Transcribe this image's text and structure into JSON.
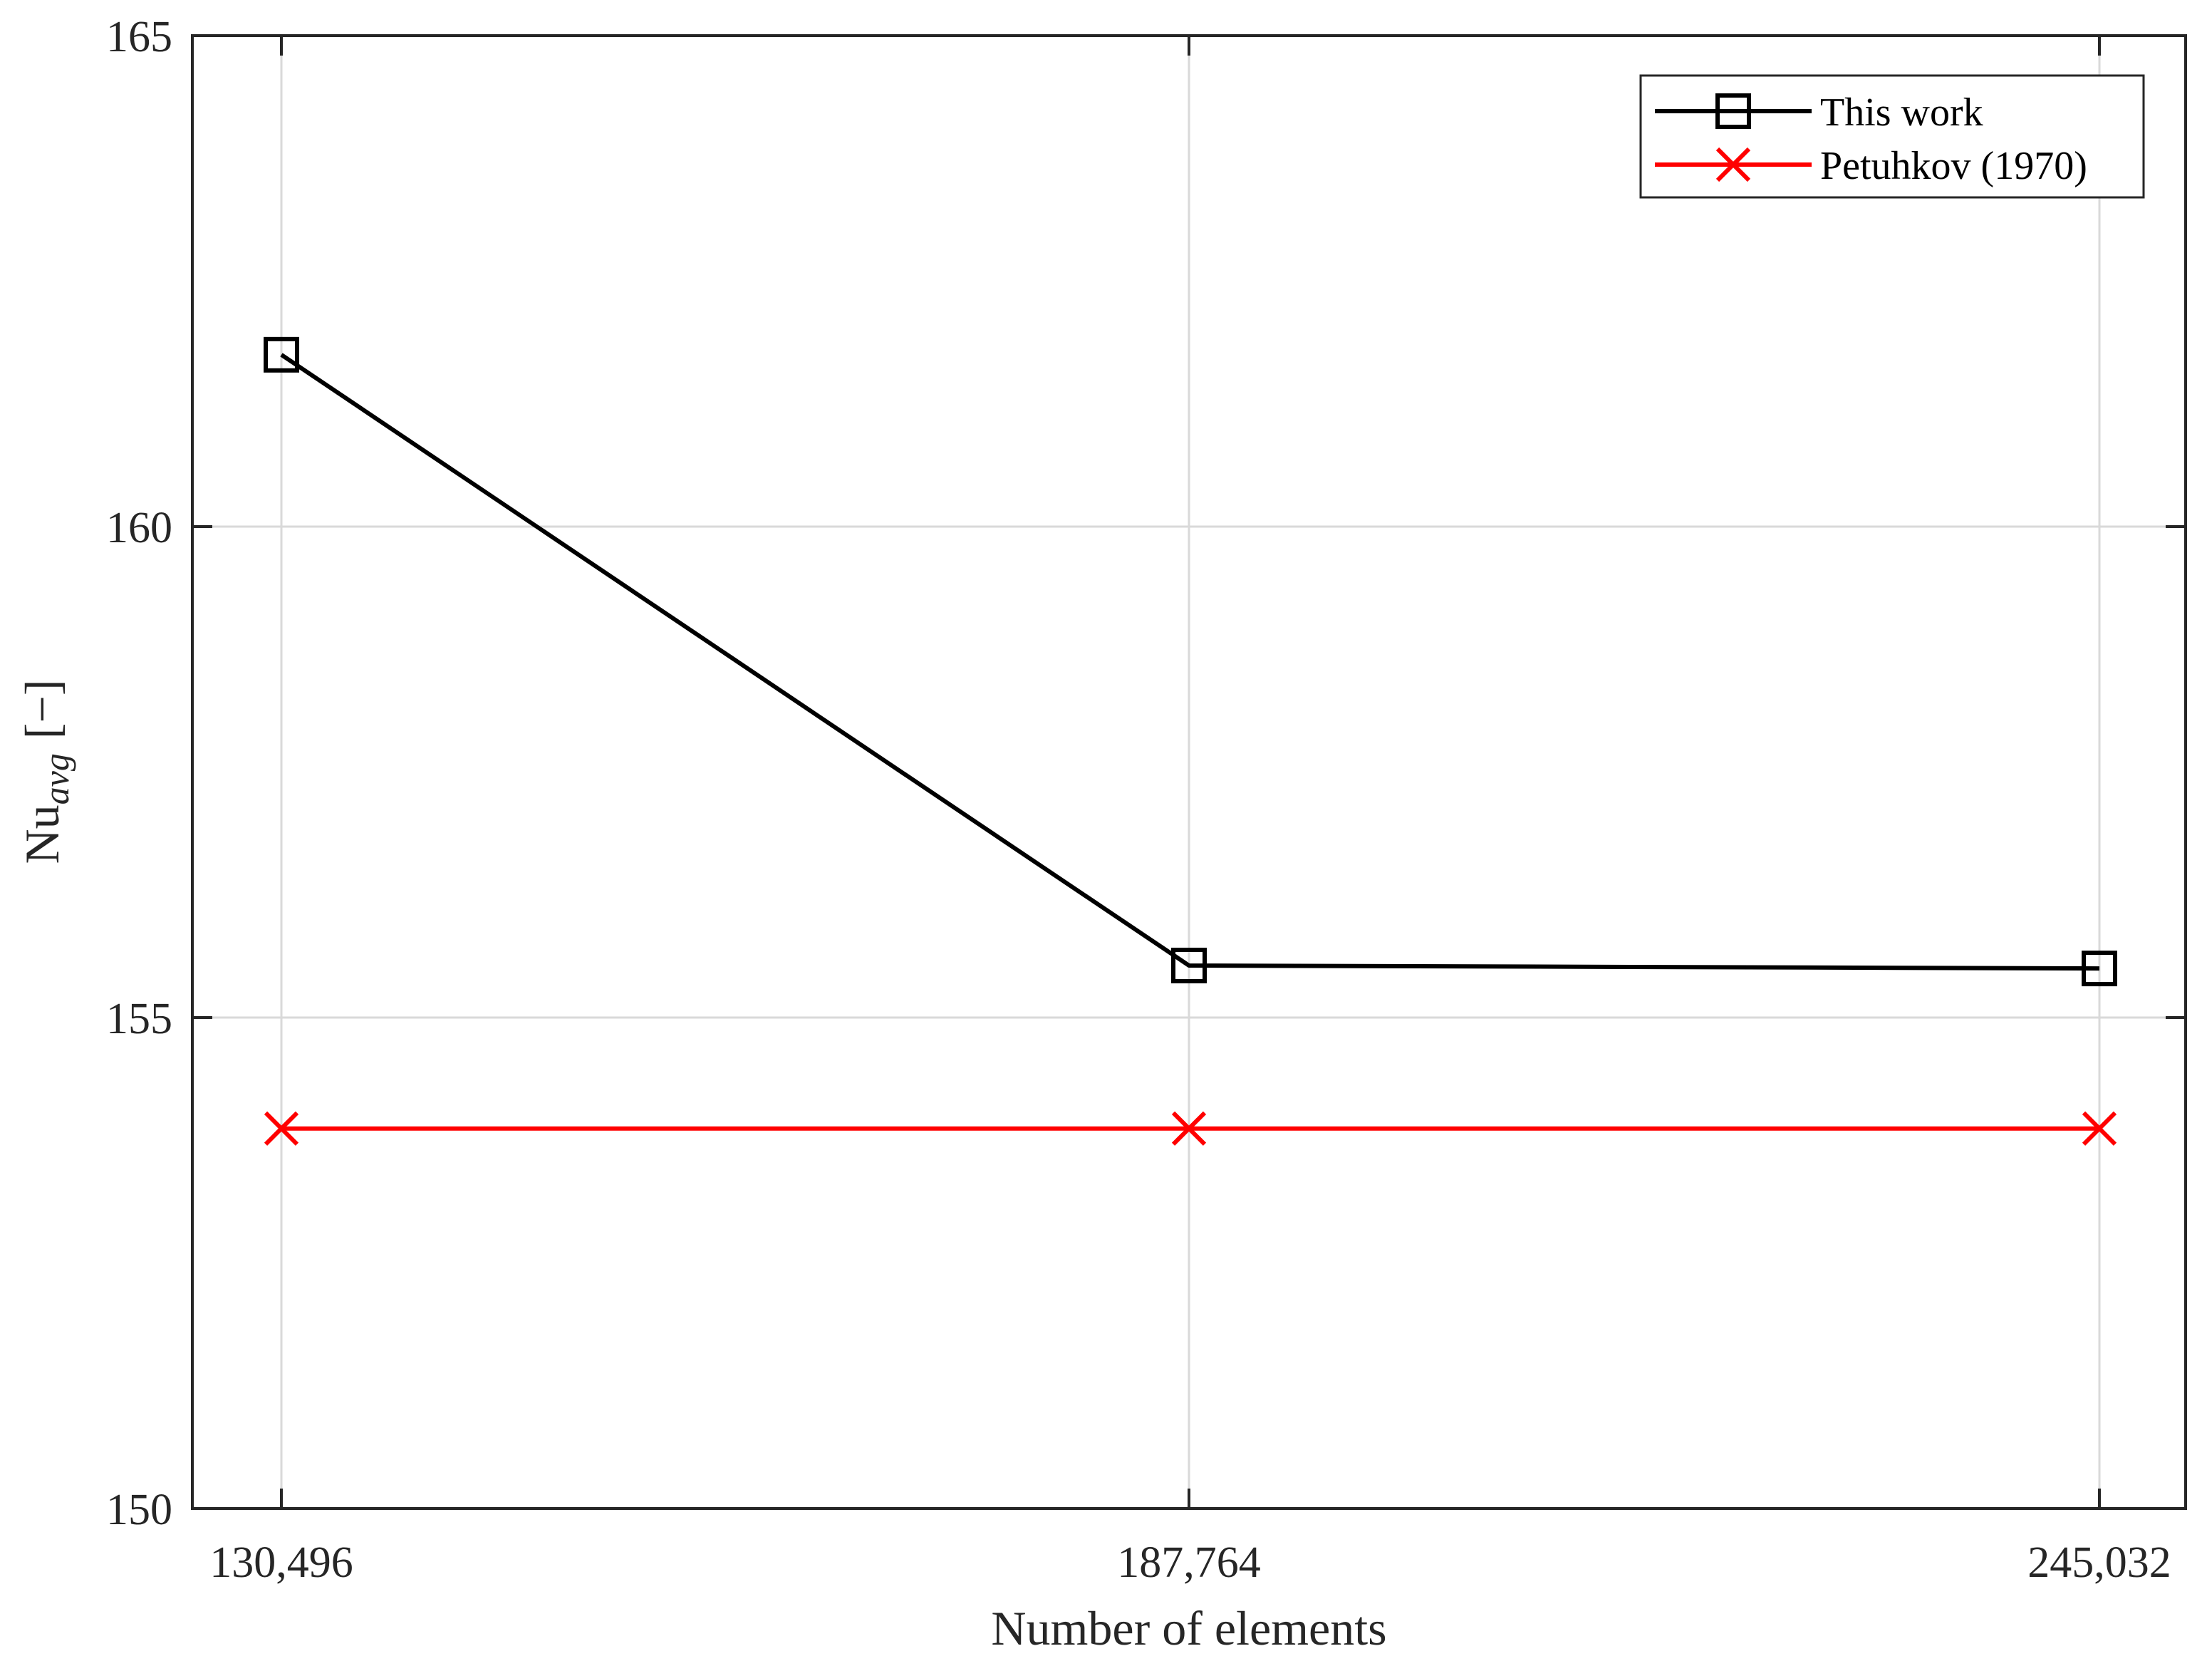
{
  "chart_data": {
    "type": "line",
    "xlabel": "Number of elements",
    "ylabel": {
      "base": "Nu",
      "subscript": "avg",
      "unit": "[−]"
    },
    "x_ticks": [
      "130,496",
      "187,764",
      "245,032"
    ],
    "y_ticks": [
      "150",
      "155",
      "160",
      "165"
    ],
    "ylim": [
      150,
      165
    ],
    "x": [
      130496,
      187764,
      245032
    ],
    "grid": true,
    "legend_position": "top-right",
    "series": [
      {
        "name": "This work",
        "values": [
          161.75,
          155.53,
          155.5
        ],
        "color": "#000000",
        "marker": "square"
      },
      {
        "name": "Petuhkov (1970)",
        "values": [
          153.87,
          153.87,
          153.87
        ],
        "color": "#ff0000",
        "marker": "x"
      }
    ]
  }
}
